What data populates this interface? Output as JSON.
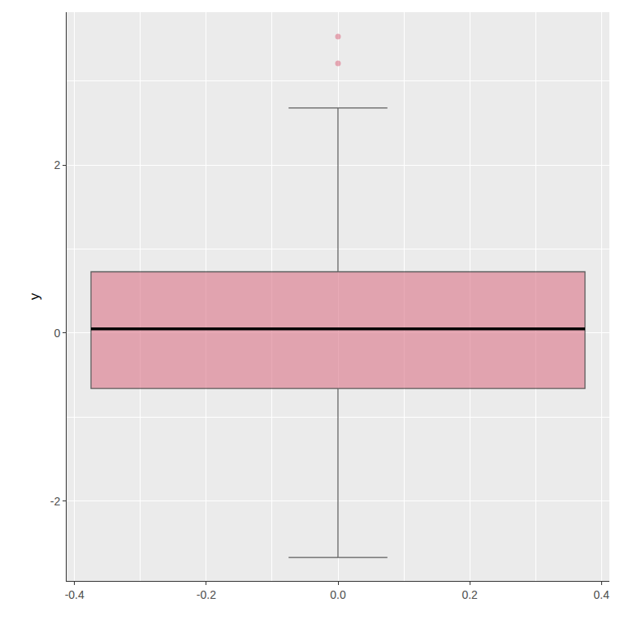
{
  "chart_data": {
    "type": "box",
    "y_label": "y",
    "x": [
      0
    ],
    "q1": [
      -0.66
    ],
    "median": [
      0.05
    ],
    "q3": [
      0.73
    ],
    "lower_whisker": [
      -2.67
    ],
    "upper_whisker": [
      2.68
    ],
    "outliers": [
      3.21,
      3.53
    ],
    "color": "#dc7488",
    "xlim": [
      -0.412,
      0.412
    ],
    "xticks": [
      -0.4,
      -0.2,
      {
        "value": 0,
        "label": "0.0"
      },
      0.2,
      0.4
    ],
    "ylim": [
      -2.95,
      3.82
    ],
    "yticks": [
      -2,
      0,
      2
    ],
    "grid": true
  }
}
